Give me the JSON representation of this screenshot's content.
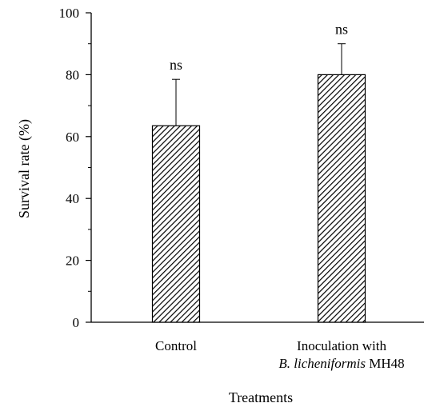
{
  "chart_data": {
    "type": "bar",
    "title": "",
    "xlabel": "Treatments",
    "ylabel": "Survival rate (%)",
    "ylim": [
      0,
      100
    ],
    "yticks": [
      0,
      20,
      40,
      60,
      80,
      100
    ],
    "categories": [
      {
        "lines": [
          {
            "parts": [
              {
                "text": "Control",
                "italic": false
              }
            ]
          }
        ]
      },
      {
        "lines": [
          {
            "parts": [
              {
                "text": "Inoculation with",
                "italic": false
              }
            ]
          },
          {
            "parts": [
              {
                "text": "B. licheniformis",
                "italic": true
              },
              {
                "text": " MH48",
                "italic": false
              }
            ]
          }
        ]
      }
    ],
    "values": [
      63.5,
      80
    ],
    "errors": [
      15,
      10
    ],
    "annotations": [
      "ns",
      "ns"
    ],
    "bar_pattern": "diagonal-hatch",
    "grid": false,
    "legend": "none"
  }
}
